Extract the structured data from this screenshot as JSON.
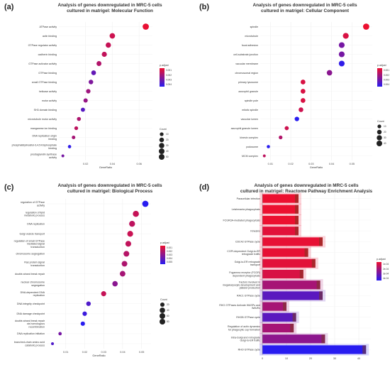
{
  "chart_data": [
    {
      "id": "a",
      "letter": "(a)",
      "type": "scatter",
      "title": "Analysis of genes downregulated in MRC-5 cells\ncultured in matrigel: Molecular Function",
      "xlabel": "GeneRatio",
      "ylabel": "",
      "xlim": [
        0.0,
        0.07
      ],
      "xticks": [
        0.02,
        0.04,
        0.06
      ],
      "xtick_labels": [
        "0.02",
        "0.04",
        "0.06"
      ],
      "categories": [
        "ATPase activity",
        "actin binding",
        "GTPase regulator activity",
        "cadherin binding",
        "GTPase activator activity",
        "GTPase binding",
        "small GTPase binding",
        "helicase activity",
        "motor activity",
        "SH3 domain binding",
        "microtubule motor activity",
        "manganese ion binding",
        "DNA replication origin binding",
        "phosphatidylinositol-3,4,5-trisphosphate binding",
        "prostaglandin synthase activity"
      ],
      "points": [
        {
          "x": 0.065,
          "count": 48,
          "padj": 0.0001
        },
        {
          "x": 0.04,
          "count": 33,
          "padj": 0.0008
        },
        {
          "x": 0.037,
          "count": 30,
          "padj": 0.001
        },
        {
          "x": 0.034,
          "count": 27,
          "padj": 0.0011
        },
        {
          "x": 0.03,
          "count": 24,
          "padj": 0.0015
        },
        {
          "x": 0.026,
          "count": 21,
          "padj": 0.0035
        },
        {
          "x": 0.024,
          "count": 19,
          "padj": 0.0028
        },
        {
          "x": 0.022,
          "count": 17,
          "padj": 0.002
        },
        {
          "x": 0.02,
          "count": 16,
          "padj": 0.0022
        },
        {
          "x": 0.018,
          "count": 14,
          "padj": 0.0038
        },
        {
          "x": 0.015,
          "count": 12,
          "padj": 0.0016
        },
        {
          "x": 0.013,
          "count": 10,
          "padj": 0.0012
        },
        {
          "x": 0.011,
          "count": 8,
          "padj": 0.0018
        },
        {
          "x": 0.008,
          "count": 6,
          "padj": 0.0048
        },
        {
          "x": 0.003,
          "count": 3,
          "padj": 0.003
        }
      ],
      "color_legend": {
        "title": "p.adjust",
        "labels": [
          "0.001",
          "0.002",
          "0.003",
          "0.004"
        ]
      },
      "size_legend": {
        "title": "Count",
        "labels": [
          "10",
          "20",
          "30",
          "40",
          "50"
        ]
      }
    },
    {
      "id": "b",
      "letter": "(b)",
      "type": "scatter",
      "title": "Analysis of genes downregulated in MRC-5 cells\ncultured in matrigel: Cellular Component",
      "xlabel": "GeneRatio",
      "ylabel": "",
      "xlim": [
        0.005,
        0.06
      ],
      "xticks": [
        0.01,
        0.02,
        0.03,
        0.04,
        0.05
      ],
      "xtick_labels": [
        "0.01",
        "0.02",
        "0.03",
        "0.04",
        "0.05"
      ],
      "categories": [
        "spindle",
        "microtubule",
        "focal adhesion",
        "cell-substrate junction",
        "vacuolar membrane",
        "chromosomal region",
        "primary lysosome",
        "azurophil granule",
        "spindle pole",
        "mitotic spindle",
        "vacuolar lumen",
        "azurophil granule lumen",
        "kinesin complex",
        "podosome",
        "MCM complex"
      ],
      "points": [
        {
          "x": 0.057,
          "count": 50,
          "padj": 0.0
        },
        {
          "x": 0.047,
          "count": 42,
          "padj": 0.0005
        },
        {
          "x": 0.045,
          "count": 40,
          "padj": 0.003
        },
        {
          "x": 0.045,
          "count": 40,
          "padj": 0.003
        },
        {
          "x": 0.045,
          "count": 40,
          "padj": 0.0048
        },
        {
          "x": 0.039,
          "count": 34,
          "padj": 0.0025
        },
        {
          "x": 0.026,
          "count": 22,
          "padj": 0.0005
        },
        {
          "x": 0.026,
          "count": 22,
          "padj": 0.0005
        },
        {
          "x": 0.026,
          "count": 22,
          "padj": 0.0005
        },
        {
          "x": 0.025,
          "count": 21,
          "padj": 0.0008
        },
        {
          "x": 0.023,
          "count": 19,
          "padj": 0.005
        },
        {
          "x": 0.018,
          "count": 14,
          "padj": 0.0008
        },
        {
          "x": 0.015,
          "count": 10,
          "padj": 0.0015
        },
        {
          "x": 0.009,
          "count": 6,
          "padj": 0.005
        },
        {
          "x": 0.007,
          "count": 3,
          "padj": 0.0012
        }
      ],
      "color_legend": {
        "title": "p.adjust",
        "labels": [
          "0.001",
          "0.002",
          "0.003",
          "0.004"
        ]
      },
      "size_legend": {
        "title": "Count",
        "labels": [
          "10",
          "20",
          "30",
          "40"
        ]
      }
    },
    {
      "id": "c",
      "letter": "(c)",
      "type": "scatter",
      "title": "Analysis of genes downregulated in MRC-5 cells\ncultured in matrigel: Biological Process",
      "xlabel": "GeneRatio",
      "ylabel": "",
      "xlim": [
        0.0,
        0.055
      ],
      "xticks": [
        0.01,
        0.02,
        0.03,
        0.04,
        0.05
      ],
      "xtick_labels": [
        "0.01",
        "0.02",
        "0.03",
        "0.04",
        "0.05"
      ],
      "categories": [
        "regulation of GTPase activity",
        "regulation of lipid metabolic process",
        "DNA replication",
        "Golgi vesicle transport",
        "regulation of small GTPase mediated signal transduction",
        "chromosome segregation",
        "Ras protein signal transduction",
        "double-strand break repair",
        "nuclear chromosome segregation",
        "DNA-dependent DNA replication",
        "DNA integrity checkpoint",
        "DNA damage checkpoint",
        "double-strand break repair via homologous recombination",
        "DNA replication initiation",
        "branched-chain amino acid catabolic process"
      ],
      "points": [
        {
          "x": 0.052,
          "count": 60,
          "padj": 0.005
        },
        {
          "x": 0.047,
          "count": 55,
          "padj": 0.001
        },
        {
          "x": 0.045,
          "count": 52,
          "padj": 0.0012
        },
        {
          "x": 0.044,
          "count": 50,
          "padj": 0.0009
        },
        {
          "x": 0.043,
          "count": 48,
          "padj": 0.0011
        },
        {
          "x": 0.042,
          "count": 47,
          "padj": 0.0014
        },
        {
          "x": 0.041,
          "count": 45,
          "padj": 0.0016
        },
        {
          "x": 0.04,
          "count": 44,
          "padj": 0.0018
        },
        {
          "x": 0.036,
          "count": 40,
          "padj": 0.0025
        },
        {
          "x": 0.03,
          "count": 33,
          "padj": 0.001
        },
        {
          "x": 0.022,
          "count": 24,
          "padj": 0.004
        },
        {
          "x": 0.02,
          "count": 22,
          "padj": 0.0045
        },
        {
          "x": 0.019,
          "count": 20,
          "padj": 0.005
        },
        {
          "x": 0.007,
          "count": 8,
          "padj": 0.003
        },
        {
          "x": 0.003,
          "count": 4,
          "padj": 0.004
        }
      ],
      "color_legend": {
        "title": "p.adjust",
        "labels": [
          "0.001",
          "0.002",
          "0.003",
          "0.004",
          "0.005"
        ]
      },
      "size_legend": {
        "title": "Count",
        "labels": [
          "20",
          "40",
          "60",
          "80"
        ]
      }
    },
    {
      "id": "d",
      "letter": "(d)",
      "type": "bar",
      "orientation": "horizontal",
      "title": "Analysis of genes downregulated in MRC-5 cells\ncultured in matrigel: Reactome Pathway Enrichment Analysis",
      "xlabel": "",
      "ylabel": "",
      "xlim": [
        0,
        45
      ],
      "xticks": [
        0,
        10,
        20,
        30,
        40
      ],
      "xtick_labels": [
        "0",
        "10",
        "20",
        "30",
        "40"
      ],
      "categories": [
        "Paracellular infection",
        "Leishmania phagocytosis",
        "FCGR3A-mediated phagocytosis",
        "Kinesins",
        "CDC42 GTPase cycle",
        "COPI-dependent Golgi-to-ER retrograde traffic",
        "Golgi-to-ER retrograde transport",
        "Fcgamma receptor (FCGR) dependent phagocytosis",
        "Factors involved in megakaryocyte development and platelet production",
        "RAC1 GTPase cycle",
        "RHO GTPases Activate WASPs and WAVEs",
        "RHOB GTPase cycle",
        "Regulation of actin dynamics for phagocytic cup formation",
        "Intra-Golgi and retrograde Golgi-to-ER traffic",
        "RHO GTPase cycle"
      ],
      "values": [
        15,
        15,
        15,
        15,
        25,
        19,
        22,
        17,
        24,
        25,
        10,
        14,
        13,
        26,
        43
      ],
      "padj": [
        0.0001,
        0.0001,
        0.0001,
        0.0003,
        0.0002,
        0.0002,
        0.0003,
        0.0005,
        0.0015,
        0.003,
        0.0015,
        0.003,
        0.0015,
        0.002,
        0.004
      ],
      "color_legend": {
        "title": "p.adjust",
        "labels": [
          "1e-04",
          "2e-04",
          "3e-04",
          "4e-04"
        ]
      }
    }
  ]
}
